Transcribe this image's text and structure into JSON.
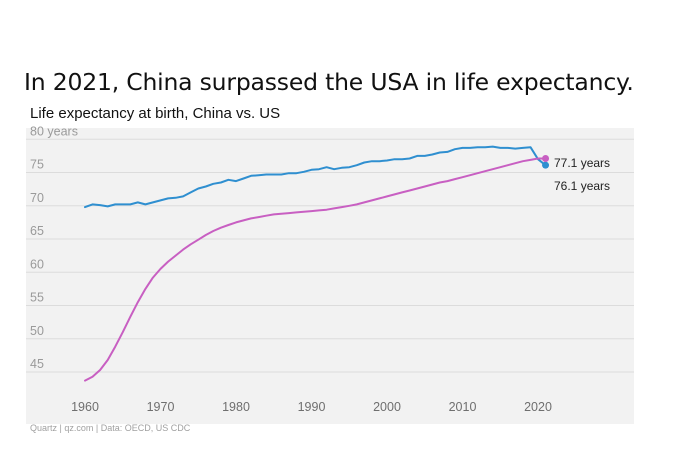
{
  "headline": "In 2021, China surpassed the USA in life expectancy.",
  "chart_data": {
    "type": "line",
    "title": "Life expectancy at birth, China vs. US",
    "ylim": [
      42,
      80
    ],
    "xlim": [
      1957.5,
      2022
    ],
    "yticks": [
      {
        "value": 80,
        "label": "80 years"
      },
      {
        "value": 75,
        "label": "75"
      },
      {
        "value": 70,
        "label": "70"
      },
      {
        "value": 65,
        "label": "65"
      },
      {
        "value": 60,
        "label": "60"
      },
      {
        "value": 55,
        "label": "55"
      },
      {
        "value": 50,
        "label": "50"
      },
      {
        "value": 45,
        "label": "45"
      }
    ],
    "xticks": [
      1960,
      1970,
      1980,
      1990,
      2000,
      2010,
      2020
    ],
    "grid": true,
    "source": "Quartz | qz.com | Data: OECD, US CDC",
    "end_labels": [
      {
        "text": "77.1 years",
        "value": 77.1
      },
      {
        "text": "76.1 years",
        "value": 76.1
      }
    ],
    "series": [
      {
        "color": "#2f8fd0",
        "x": [
          1960,
          1961,
          1962,
          1963,
          1964,
          1965,
          1966,
          1967,
          1968,
          1969,
          1970,
          1971,
          1972,
          1973,
          1974,
          1975,
          1976,
          1977,
          1978,
          1979,
          1980,
          1981,
          1982,
          1983,
          1984,
          1985,
          1986,
          1987,
          1988,
          1989,
          1990,
          1991,
          1992,
          1993,
          1994,
          1995,
          1996,
          1997,
          1998,
          1999,
          2000,
          2001,
          2002,
          2003,
          2004,
          2005,
          2006,
          2007,
          2008,
          2009,
          2010,
          2011,
          2012,
          2013,
          2014,
          2015,
          2016,
          2017,
          2018,
          2019,
          2020,
          2021
        ],
        "values": [
          69.8,
          70.2,
          70.1,
          69.9,
          70.2,
          70.2,
          70.2,
          70.5,
          70.2,
          70.5,
          70.8,
          71.1,
          71.2,
          71.4,
          72.0,
          72.6,
          72.9,
          73.3,
          73.5,
          73.9,
          73.7,
          74.1,
          74.5,
          74.6,
          74.7,
          74.7,
          74.7,
          74.9,
          74.9,
          75.1,
          75.4,
          75.5,
          75.8,
          75.5,
          75.7,
          75.8,
          76.1,
          76.5,
          76.7,
          76.7,
          76.8,
          77.0,
          77.0,
          77.1,
          77.5,
          77.5,
          77.7,
          78.0,
          78.1,
          78.5,
          78.7,
          78.7,
          78.8,
          78.8,
          78.9,
          78.7,
          78.7,
          78.6,
          78.7,
          78.8,
          77.0,
          76.1
        ]
      },
      {
        "color": "#c85fc2",
        "x": [
          1960,
          1961,
          1962,
          1963,
          1964,
          1965,
          1966,
          1967,
          1968,
          1969,
          1970,
          1971,
          1972,
          1973,
          1974,
          1975,
          1976,
          1977,
          1978,
          1979,
          1980,
          1981,
          1982,
          1983,
          1984,
          1985,
          1986,
          1987,
          1988,
          1989,
          1990,
          1991,
          1992,
          1993,
          1994,
          1995,
          1996,
          1997,
          1998,
          1999,
          2000,
          2001,
          2002,
          2003,
          2004,
          2005,
          2006,
          2007,
          2008,
          2009,
          2010,
          2011,
          2012,
          2013,
          2014,
          2015,
          2016,
          2017,
          2018,
          2019,
          2020,
          2021
        ],
        "values": [
          43.7,
          44.3,
          45.3,
          46.8,
          48.8,
          51.0,
          53.3,
          55.5,
          57.5,
          59.2,
          60.5,
          61.6,
          62.5,
          63.4,
          64.2,
          64.9,
          65.6,
          66.2,
          66.7,
          67.1,
          67.5,
          67.8,
          68.1,
          68.3,
          68.5,
          68.7,
          68.8,
          68.9,
          69.0,
          69.1,
          69.2,
          69.3,
          69.4,
          69.6,
          69.8,
          70.0,
          70.2,
          70.5,
          70.8,
          71.1,
          71.4,
          71.7,
          72.0,
          72.3,
          72.6,
          72.9,
          73.2,
          73.5,
          73.7,
          74.0,
          74.3,
          74.6,
          74.9,
          75.2,
          75.5,
          75.8,
          76.1,
          76.4,
          76.7,
          76.9,
          77.1,
          77.1
        ]
      }
    ]
  }
}
